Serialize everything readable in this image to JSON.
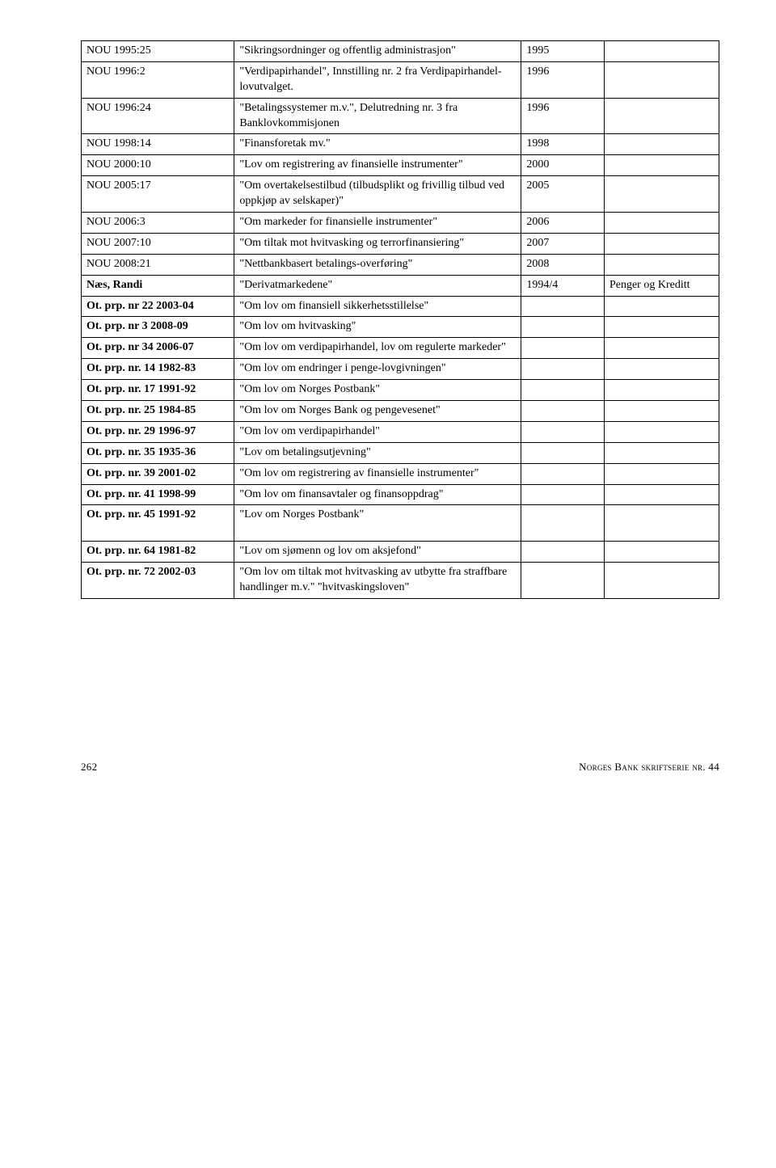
{
  "rows": [
    {
      "c0": "NOU 1995:25",
      "c1": "\"Sikringsordninger og offentlig administrasjon\"",
      "c2": "1995",
      "c3": ""
    },
    {
      "c0": "NOU 1996:2",
      "c1": "\"Verdipapirhandel\", Innstilling nr. 2 fra Verdipapirhandel-lovutvalget.",
      "c2": "1996",
      "c3": ""
    },
    {
      "c0": "NOU 1996:24",
      "c1": "\"Betalingssystemer m.v.\", Delutredning nr. 3 fra Banklovkommisjonen",
      "c2": "1996",
      "c3": ""
    },
    {
      "c0": "NOU 1998:14",
      "c1": "\"Finansforetak mv.\"",
      "c2": "1998",
      "c3": ""
    },
    {
      "c0": "NOU 2000:10",
      "c1": "\"Lov om registrering av finansielle instrumenter\"",
      "c2": "2000",
      "c3": ""
    },
    {
      "c0": "NOU 2005:17",
      "c1": "\"Om overtakelsestilbud (tilbudsplikt og frivillig tilbud ved oppkjøp av selskaper)\"",
      "c2": "2005",
      "c3": ""
    },
    {
      "c0": "NOU 2006:3",
      "c1": "\"Om markeder for finansielle instrumenter\"",
      "c2": "2006",
      "c3": ""
    },
    {
      "c0": "NOU 2007:10",
      "c1": "\"Om tiltak mot hvitvasking og terrorfinansiering\"",
      "c2": "2007",
      "c3": ""
    },
    {
      "c0": "NOU 2008:21",
      "c1": "\"Nettbankbasert betalings-overføring\"",
      "c2": "2008",
      "c3": ""
    },
    {
      "c0": "Næs, Randi",
      "c0bold": true,
      "c1": "\"Derivatmarkedene\"",
      "c2": "1994/4",
      "c3": "Penger og Kreditt"
    },
    {
      "c0": "Ot. prp. nr 22 2003-04",
      "c0bold": true,
      "c1": "\"Om lov om finansiell sikkerhetsstillelse\"",
      "c2": "",
      "c3": ""
    },
    {
      "c0": "Ot. prp. nr 3 2008-09",
      "c0bold": true,
      "c1": "\"Om lov om hvitvasking\"",
      "c2": "",
      "c3": ""
    },
    {
      "c0": "Ot. prp. nr 34 2006-07",
      "c0bold": true,
      "c1": "\"Om lov om verdipapirhandel, lov om regulerte markeder\"",
      "c2": "",
      "c3": ""
    },
    {
      "c0": "Ot. prp. nr. 14 1982-83",
      "c0bold": true,
      "c1": "\"Om lov om endringer i penge-lovgivningen\"",
      "c2": "",
      "c3": ""
    },
    {
      "c0": "Ot. prp. nr. 17 1991-92",
      "c0bold": true,
      "c1": "\"Om lov om Norges Postbank\"",
      "c2": "",
      "c3": ""
    },
    {
      "c0": "Ot. prp. nr. 25 1984-85",
      "c0bold": true,
      "c1": "\"Om lov om Norges Bank og pengevesenet\"",
      "c2": "",
      "c3": ""
    },
    {
      "c0": "Ot. prp. nr. 29 1996-97",
      "c0bold": true,
      "c1": "\"Om lov om verdipapirhandel\"",
      "c2": "",
      "c3": ""
    },
    {
      "c0": "Ot. prp. nr. 35 1935-36",
      "c0bold": true,
      "c1": "\"Lov om betalingsutjevning\"",
      "c2": "",
      "c3": ""
    },
    {
      "c0": "Ot. prp. nr. 39 2001-02",
      "c0bold": true,
      "c1": "\"Om lov om registrering av finansielle instrumenter\"",
      "c2": "",
      "c3": ""
    },
    {
      "c0": "Ot. prp. nr. 41 1998-99",
      "c0bold": true,
      "c1": "\"Om lov om finansavtaler og finansoppdrag\"",
      "c2": "",
      "c3": ""
    },
    {
      "c0": "Ot. prp. nr. 45 1991-92",
      "c0bold": true,
      "c1": "\"Lov om Norges Postbank\"",
      "c2": "",
      "c3": "",
      "extraHeight": true
    },
    {
      "c0": "Ot. prp. nr. 64 1981-82",
      "c0bold": true,
      "c1": "\"Lov om sjømenn og lov om aksjefond\"",
      "c2": "",
      "c3": ""
    },
    {
      "c0": "Ot. prp. nr. 72 2002-03",
      "c0bold": true,
      "c1": "\"Om lov om tiltak mot hvitvasking av utbytte fra straffbare handlinger m.v.\" \"hvitvaskingsloven\"",
      "c2": "",
      "c3": ""
    }
  ],
  "footer": {
    "pageNumber": "262",
    "rightText": "Norges Bank skriftserie nr. 44"
  }
}
